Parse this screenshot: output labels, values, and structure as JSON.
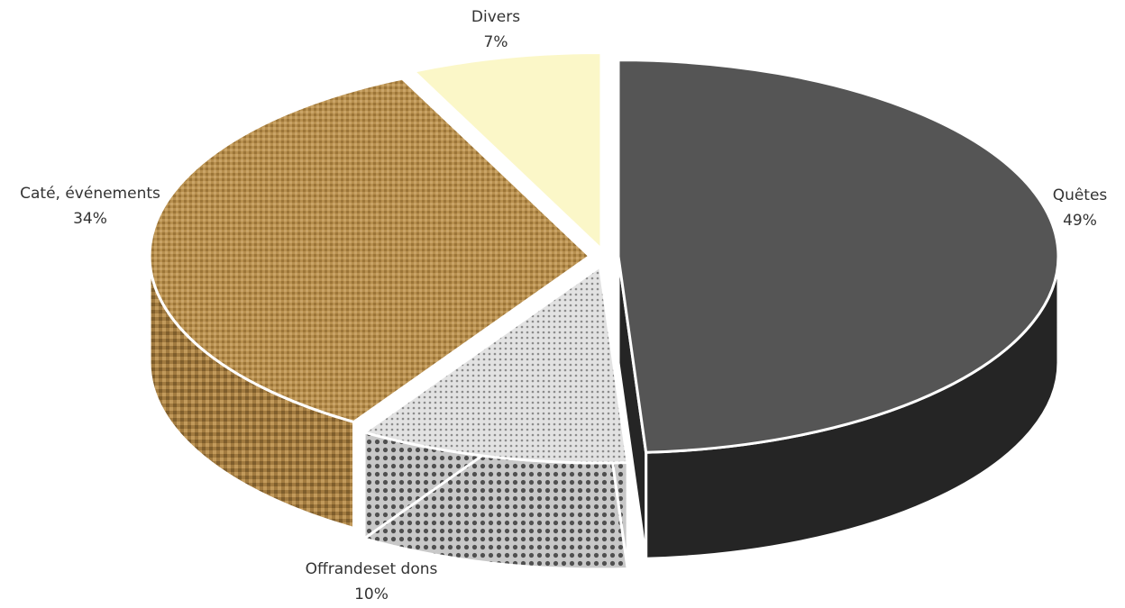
{
  "chart_data": {
    "type": "pie",
    "style": "3d-exploded",
    "slices": [
      {
        "label": "Quêtes",
        "percent_label": "49%",
        "value": 49,
        "color": "#555555",
        "side_color": "#252525",
        "pattern": "solid"
      },
      {
        "label": "Offrandeset dons",
        "percent_label": "10%",
        "value": 10,
        "color": "#d4d4d4",
        "side_color": "#9a9a9a",
        "pattern": "dots"
      },
      {
        "label": "Caté, événements",
        "percent_label": "34%",
        "value": 34,
        "color": "#b38b4e",
        "side_color": "#8e6a36",
        "pattern": "burlap"
      },
      {
        "label": "Divers",
        "percent_label": "7%",
        "value": 7,
        "color": "#fbf7c8",
        "side_color": "#6f6a4c",
        "pattern": "solid"
      }
    ]
  }
}
